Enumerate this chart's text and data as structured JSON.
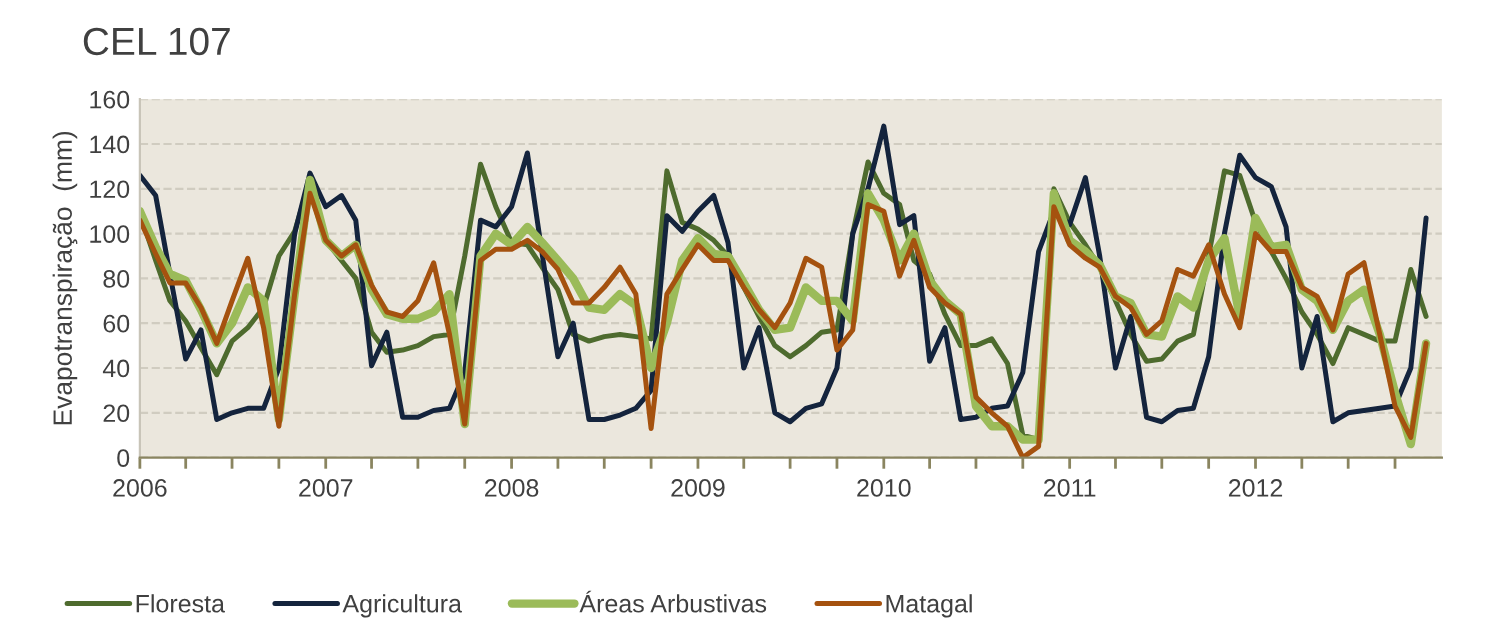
{
  "chart_data": {
    "type": "line",
    "title": "CEL 107",
    "ylabel": "Evapotranspiração  (mm)",
    "x": [
      "2006-01",
      "2006-02",
      "2006-03",
      "2006-04",
      "2006-05",
      "2006-06",
      "2006-07",
      "2006-08",
      "2006-09",
      "2006-10",
      "2006-11",
      "2006-12",
      "2007-01",
      "2007-02",
      "2007-03",
      "2007-04",
      "2007-05",
      "2007-06",
      "2007-07",
      "2007-08",
      "2007-09",
      "2007-10",
      "2007-11",
      "2007-12",
      "2008-01",
      "2008-02",
      "2008-03",
      "2008-04",
      "2008-05",
      "2008-06",
      "2008-07",
      "2008-08",
      "2008-09",
      "2008-10",
      "2008-11",
      "2008-12",
      "2009-01",
      "2009-02",
      "2009-03",
      "2009-04",
      "2009-05",
      "2009-06",
      "2009-07",
      "2009-08",
      "2009-09",
      "2009-10",
      "2009-11",
      "2009-12",
      "2010-01",
      "2010-02",
      "2010-03",
      "2010-04",
      "2010-05",
      "2010-06",
      "2010-07",
      "2010-08",
      "2010-09",
      "2010-10",
      "2010-11",
      "2010-12",
      "2011-01",
      "2011-02",
      "2011-03",
      "2011-04",
      "2011-05",
      "2011-06",
      "2011-07",
      "2011-08",
      "2011-09",
      "2011-10",
      "2011-11",
      "2011-12",
      "2012-01",
      "2012-02",
      "2012-03",
      "2012-04",
      "2012-05",
      "2012-06",
      "2012-07",
      "2012-08",
      "2012-09",
      "2012-10",
      "2012-11",
      "2012-12"
    ],
    "series": [
      {
        "name": "Floresta",
        "color": "#4e6b2e",
        "values": [
          109,
          88,
          70,
          61,
          49,
          37,
          52,
          58,
          67,
          90,
          101,
          124,
          97,
          88,
          80,
          56,
          47,
          48,
          50,
          54,
          55,
          90,
          131,
          112,
          96,
          95,
          85,
          75,
          55,
          52,
          54,
          55,
          54,
          53,
          128,
          105,
          102,
          97,
          90,
          76,
          63,
          50,
          45,
          50,
          56,
          57,
          100,
          132,
          118,
          113,
          88,
          82,
          64,
          50,
          50,
          53,
          42,
          10,
          8,
          120,
          105,
          95,
          85,
          70,
          55,
          43,
          44,
          52,
          55,
          90,
          128,
          126,
          105,
          92,
          80,
          65,
          55,
          42,
          58,
          55,
          52,
          52,
          84,
          63
        ]
      },
      {
        "name": "Agricultura",
        "color": "#14243d",
        "values": [
          126,
          117,
          82,
          44,
          57,
          17,
          20,
          22,
          22,
          40,
          100,
          127,
          112,
          117,
          106,
          41,
          56,
          18,
          18,
          21,
          22,
          38,
          106,
          103,
          112,
          136,
          91,
          45,
          60,
          17,
          17,
          19,
          22,
          30,
          108,
          101,
          110,
          117,
          96,
          40,
          58,
          20,
          16,
          22,
          24,
          40,
          100,
          120,
          148,
          104,
          108,
          43,
          58,
          17,
          18,
          22,
          23,
          38,
          92,
          110,
          104,
          125,
          90,
          40,
          63,
          18,
          16,
          21,
          22,
          45,
          100,
          135,
          125,
          121,
          103,
          40,
          63,
          16,
          20,
          21,
          22,
          23,
          40,
          107
        ]
      },
      {
        "name": "Áreas Arbustivas",
        "color": "#9bbb59",
        "values": [
          110,
          94,
          82,
          79,
          66,
          51,
          60,
          76,
          70,
          17,
          73,
          124,
          97,
          90,
          95,
          75,
          64,
          62,
          62,
          65,
          73,
          15,
          90,
          100,
          95,
          103,
          96,
          88,
          80,
          67,
          66,
          73,
          68,
          40,
          60,
          88,
          98,
          91,
          90,
          78,
          66,
          57,
          58,
          76,
          70,
          70,
          61,
          118,
          106,
          88,
          100,
          79,
          70,
          64,
          23,
          14,
          14,
          8,
          8,
          118,
          97,
          92,
          86,
          72,
          69,
          55,
          54,
          72,
          67,
          88,
          98,
          63,
          107,
          94,
          95,
          75,
          70,
          57,
          70,
          75,
          55,
          29,
          6,
          51
        ]
      },
      {
        "name": "Matagal",
        "color": "#a5520f",
        "values": [
          106,
          91,
          78,
          78,
          67,
          51,
          70,
          89,
          58,
          14,
          73,
          118,
          97,
          90,
          95,
          77,
          65,
          63,
          70,
          87,
          55,
          15,
          88,
          93,
          93,
          97,
          92,
          84,
          69,
          69,
          76,
          85,
          73,
          13,
          73,
          84,
          95,
          88,
          88,
          76,
          66,
          58,
          69,
          89,
          85,
          48,
          57,
          113,
          110,
          81,
          97,
          76,
          69,
          64,
          27,
          20,
          14,
          0,
          5,
          112,
          95,
          89,
          85,
          72,
          67,
          55,
          61,
          84,
          81,
          95,
          73,
          58,
          100,
          92,
          92,
          76,
          72,
          57,
          82,
          87,
          55,
          23,
          9,
          51
        ]
      }
    ],
    "xlim": [
      "2006-01-01",
      "2013-01-01"
    ],
    "xticks": [
      {
        "value": "2006-01-01",
        "label": "2006"
      },
      {
        "value": "2006-04-01",
        "label": null
      },
      {
        "value": "2006-07-01",
        "label": null
      },
      {
        "value": "2006-10-01",
        "label": null
      },
      {
        "value": "2007-01-01",
        "label": "2007"
      },
      {
        "value": "2007-04-01",
        "label": null
      },
      {
        "value": "2007-07-01",
        "label": null
      },
      {
        "value": "2007-10-01",
        "label": null
      },
      {
        "value": "2008-01-01",
        "label": "2008"
      },
      {
        "value": "2008-04-01",
        "label": null
      },
      {
        "value": "2008-07-01",
        "label": null
      },
      {
        "value": "2008-10-01",
        "label": null
      },
      {
        "value": "2009-01-01",
        "label": "2009"
      },
      {
        "value": "2009-04-01",
        "label": null
      },
      {
        "value": "2009-07-01",
        "label": null
      },
      {
        "value": "2009-10-01",
        "label": null
      },
      {
        "value": "2010-01-01",
        "label": "2010"
      },
      {
        "value": "2010-04-01",
        "label": null
      },
      {
        "value": "2010-07-01",
        "label": null
      },
      {
        "value": "2010-10-01",
        "label": null
      },
      {
        "value": "2011-01-01",
        "label": "2011"
      },
      {
        "value": "2011-04-01",
        "label": null
      },
      {
        "value": "2011-07-01",
        "label": null
      },
      {
        "value": "2011-10-01",
        "label": null
      },
      {
        "value": "2012-01-01",
        "label": "2012"
      },
      {
        "value": "2012-04-01",
        "label": null
      },
      {
        "value": "2012-07-01",
        "label": null
      },
      {
        "value": "2012-10-01",
        "label": null
      }
    ],
    "ylim": [
      0,
      160
    ],
    "yticks": [
      0,
      20,
      40,
      60,
      80,
      100,
      120,
      140,
      160
    ],
    "grid": "y",
    "legend": "bottom",
    "marker": "none",
    "line_style": "solid"
  }
}
